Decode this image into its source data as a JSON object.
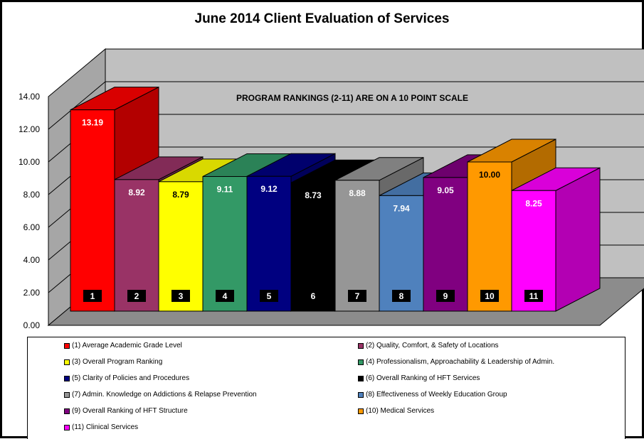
{
  "chart_data": {
    "type": "bar",
    "title": "June 2014 Client Evaluation of Services",
    "annotation": "PROGRAM RANKINGS (2-11) ARE ON A 10 POINT SCALE",
    "ylim": [
      0,
      14
    ],
    "ytick_labels": [
      "0.00",
      "2.00",
      "4.00",
      "6.00",
      "8.00",
      "10.00",
      "12.00",
      "14.00"
    ],
    "grid": true,
    "legend_position": "bottom",
    "categories": [
      "1",
      "2",
      "3",
      "4",
      "5",
      "6",
      "7",
      "8",
      "9",
      "10",
      "11"
    ],
    "values": [
      13.19,
      8.92,
      8.79,
      9.11,
      9.12,
      8.73,
      8.88,
      7.94,
      9.05,
      10.0,
      8.25
    ],
    "value_labels": [
      "13.19",
      "8.92",
      "8.79",
      "9.11",
      "9.12",
      "8.73",
      "8.88",
      "7.94",
      "9.05",
      "10.00",
      "8.25"
    ],
    "series": [
      {
        "name": "(1) Average Academic Grade Level",
        "color": "#FF0000"
      },
      {
        "name": "(2) Quality, Comfort, & Safety of Locations",
        "color": "#993366"
      },
      {
        "name": "(3) Overall Program Ranking",
        "color": "#FFFF00"
      },
      {
        "name": "(4) Professionalism, Approachability  & Leadership of Admin.",
        "color": "#339966"
      },
      {
        "name": "(5) Clarity of Policies and Procedures",
        "color": "#000080"
      },
      {
        "name": "(6) Overall Ranking of HFT Services",
        "color": "#000000"
      },
      {
        "name": "(7) Admin. Knowledge on Addictions & Relapse Prevention",
        "color": "#969696"
      },
      {
        "name": "(8) Effectiveness of Weekly Education Group",
        "color": "#4F81BD"
      },
      {
        "name": "(9) Overall Ranking of HFT Structure",
        "color": "#800080"
      },
      {
        "name": "(10) Medical Services",
        "color": "#FF9900"
      },
      {
        "name": "(11) Clinical Services",
        "color": "#FF00FF"
      }
    ]
  }
}
